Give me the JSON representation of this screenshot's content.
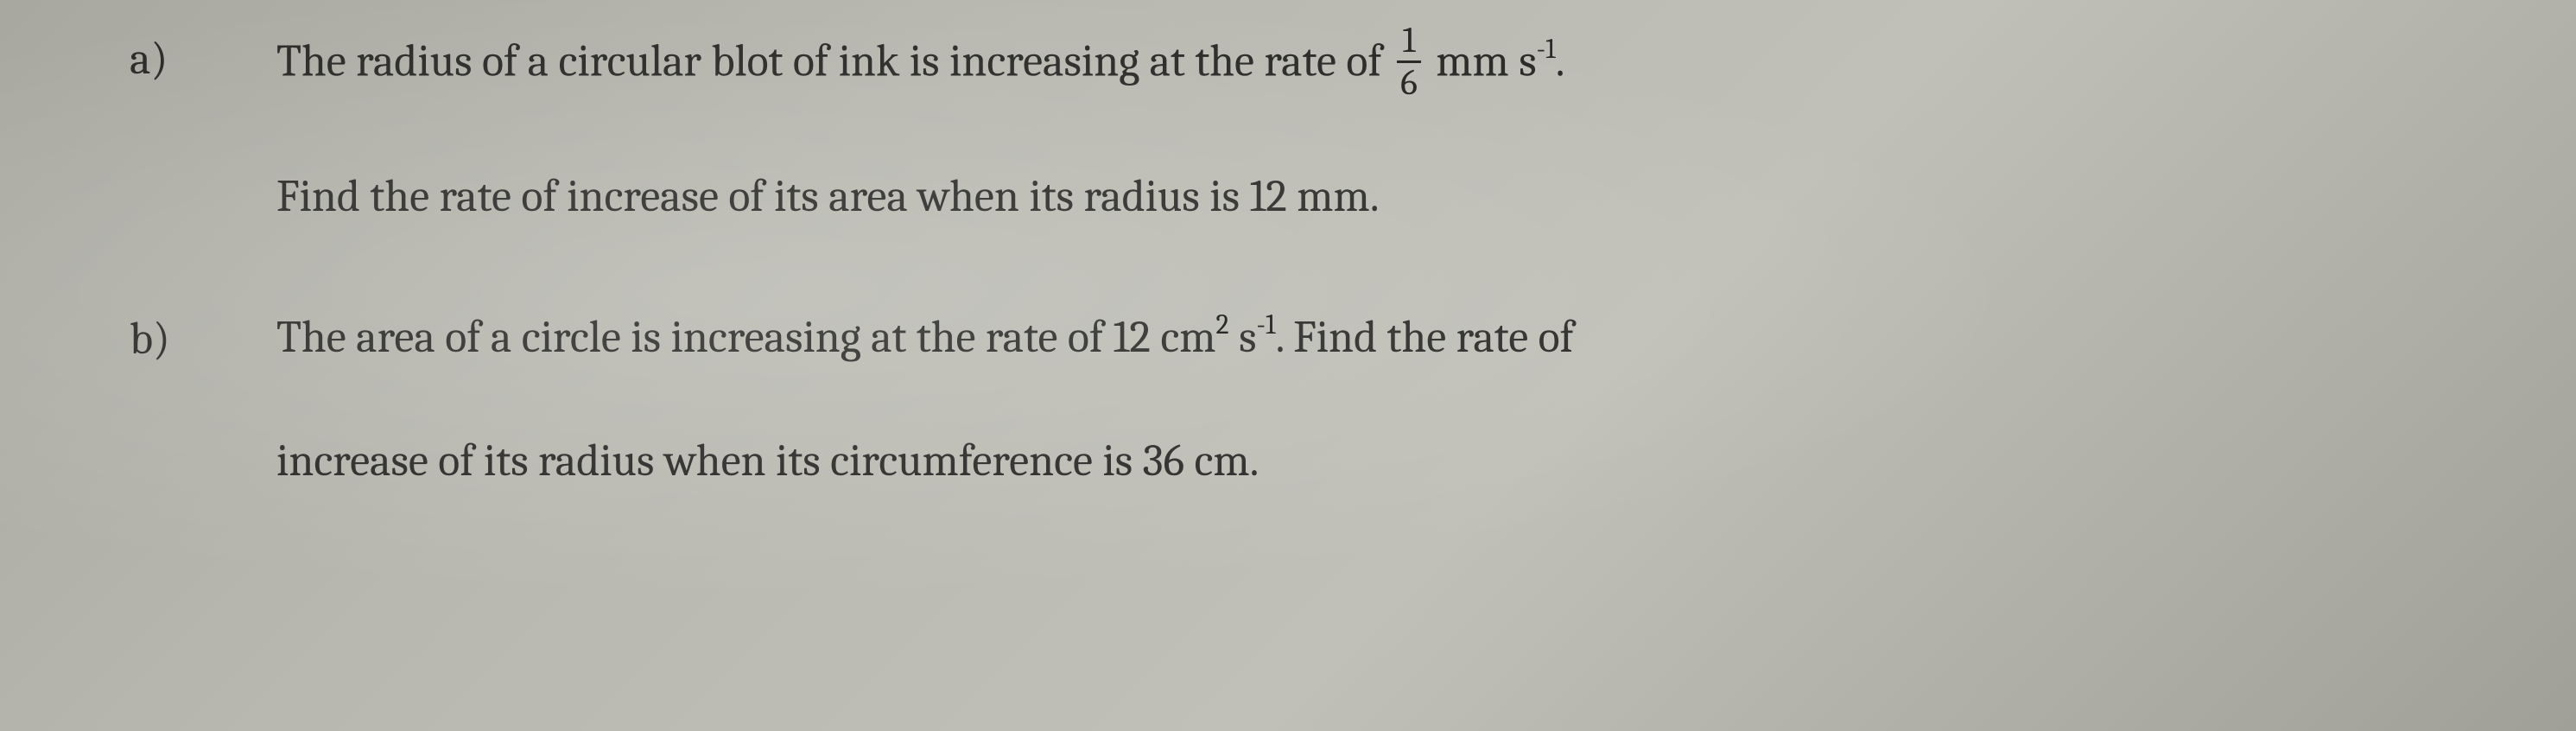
{
  "problems": [
    {
      "label": "a)",
      "lines": [
        {
          "prefix": "The radius of a circular blot of ink is increasing at the rate of ",
          "fraction": {
            "num": "1",
            "den": "6"
          },
          "suffix_before_sup": " mm s",
          "sup": "-1",
          "suffix_after_sup": "."
        },
        {
          "text": "Find the rate of increase of its area when its radius is 12 mm."
        }
      ]
    },
    {
      "label": "b)",
      "lines": [
        {
          "prefix": "The area of a circle is increasing at the rate of 12 cm",
          "sup1": "2",
          "mid": " s",
          "sup2": "-1",
          "suffix": ". Find the rate of"
        },
        {
          "text": "increase of its radius when its circumference is 36 cm."
        }
      ]
    }
  ]
}
